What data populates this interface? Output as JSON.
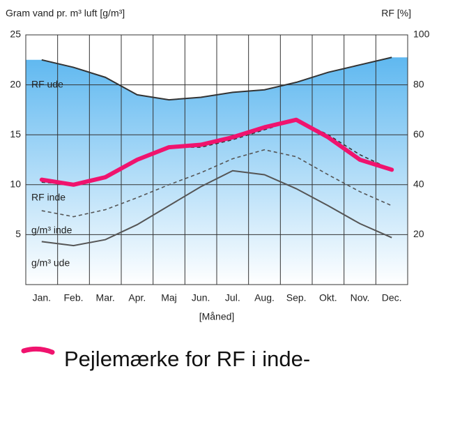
{
  "chart_data": {
    "type": "line",
    "y_label": "Gram vand pr. m³ luft [g/m³]",
    "y2_label": "RF [%]",
    "x_label": "[Måned]",
    "categories": [
      "Jan.",
      "Feb.",
      "Mar.",
      "Apr.",
      "Maj",
      "Jun.",
      "Jul.",
      "Aug.",
      "Sep.",
      "Okt.",
      "Nov.",
      "Dec."
    ],
    "ylim": [
      0,
      25
    ],
    "yticks": [
      5,
      10,
      15,
      20,
      25
    ],
    "y2lim": [
      0,
      100
    ],
    "y2ticks": [
      20,
      40,
      60,
      80,
      100
    ],
    "grid": true,
    "series": [
      {
        "name": "RF ude",
        "axis": "y2",
        "color": "#333333",
        "style": "solid",
        "fill": true,
        "values": [
          90,
          87,
          83,
          76,
          74,
          75,
          77,
          78,
          81,
          85,
          88,
          91
        ]
      },
      {
        "name": "RF inde",
        "axis": "y2",
        "color": "#333333",
        "style": "dashed",
        "values": [
          41,
          40,
          43,
          50,
          55,
          55,
          58,
          62,
          66,
          60,
          52,
          46
        ]
      },
      {
        "name": "g/m³ inde",
        "color": "#555555",
        "style": "dashed",
        "values": [
          7.4,
          6.8,
          7.5,
          8.7,
          10,
          11.2,
          12.6,
          13.5,
          12.8,
          11,
          9.3,
          7.9
        ]
      },
      {
        "name": "g/m³ ude",
        "color": "#555555",
        "style": "solid",
        "values": [
          4.3,
          3.9,
          4.5,
          6,
          7.9,
          9.8,
          11.4,
          11,
          9.6,
          7.9,
          6.1,
          4.7
        ]
      },
      {
        "name": "Pejlemærke for RF i inde-",
        "axis": "y2",
        "color": "#f0136e",
        "style": "thick",
        "values": [
          42,
          40,
          43,
          50,
          55,
          56,
          59,
          63,
          66,
          59,
          50,
          46
        ]
      }
    ]
  }
}
